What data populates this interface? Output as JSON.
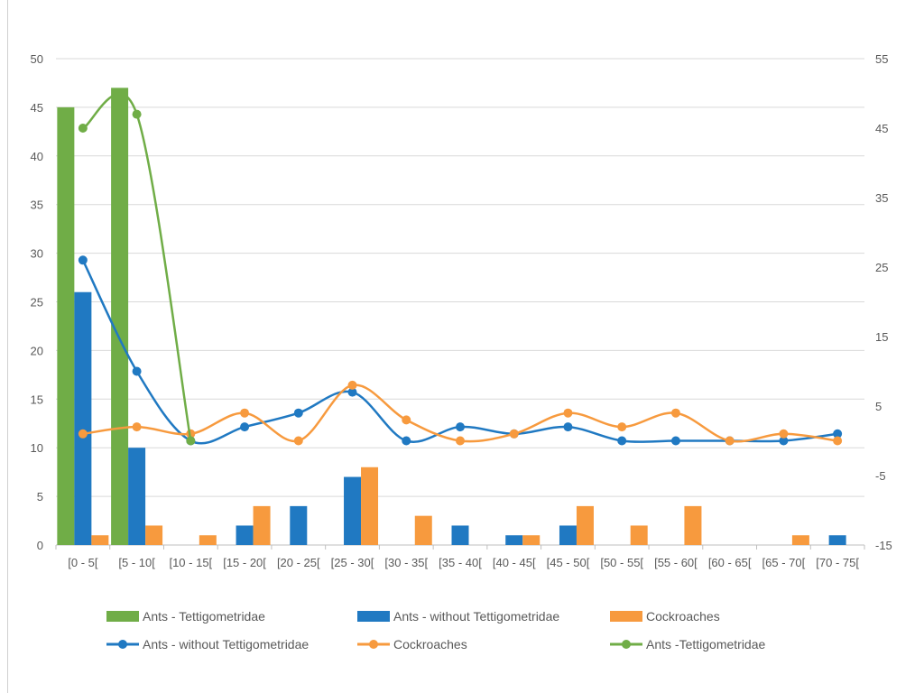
{
  "chart_data": {
    "type": "bar+line",
    "categories": [
      "[0 - 5[",
      "[5 - 10[",
      "[10 - 15[",
      "[15 - 20[",
      "[20 - 25[",
      "[25 - 30[",
      "[30 - 35[",
      "[35 - 40[",
      "[40 - 45[",
      "[45 - 50[",
      "[50 - 55[",
      "[55 - 60[",
      "[60 - 65[",
      "[65 - 70[",
      "[70 - 75["
    ],
    "y_left": {
      "range": [
        0,
        50
      ],
      "ticks": [
        0,
        5,
        10,
        15,
        20,
        25,
        30,
        35,
        40,
        45,
        50
      ]
    },
    "y_right": {
      "range": [
        -15,
        55
      ],
      "ticks": [
        -15,
        -5,
        5,
        15,
        25,
        35,
        45,
        55
      ]
    },
    "grid": true,
    "legend_position": "bottom",
    "bar_series": [
      {
        "name": "Ants - Tettigometridae",
        "color": "#70AD47",
        "axis": "left",
        "values": [
          45,
          47,
          0,
          0,
          0,
          0,
          0,
          0,
          0,
          0,
          0,
          0,
          0,
          0,
          0
        ]
      },
      {
        "name": "Ants - without Tettigometridae",
        "color": "#2079C2",
        "axis": "left",
        "values": [
          26,
          10,
          0,
          2,
          4,
          7,
          0,
          2,
          1,
          2,
          0,
          0,
          0,
          0,
          1
        ]
      },
      {
        "name": "Cockroaches",
        "color": "#F79A3E",
        "axis": "left",
        "values": [
          1,
          2,
          1,
          4,
          0,
          8,
          3,
          0,
          1,
          4,
          2,
          4,
          0,
          1,
          0
        ]
      }
    ],
    "line_series": [
      {
        "name": "Ants - without Tettigometridae",
        "color": "#2079C2",
        "axis": "right",
        "values": [
          26,
          10,
          0,
          2,
          4,
          7,
          0,
          2,
          1,
          2,
          0,
          0,
          0,
          0,
          1
        ]
      },
      {
        "name": "Cockroaches",
        "color": "#F79A3E",
        "axis": "right",
        "values": [
          1,
          2,
          1,
          4,
          0,
          8,
          3,
          0,
          1,
          4,
          2,
          4,
          0,
          1,
          0
        ]
      },
      {
        "name": "Ants -Tettigometridae",
        "color": "#70AD47",
        "axis": "right",
        "values": [
          45,
          47,
          0
        ]
      }
    ]
  }
}
